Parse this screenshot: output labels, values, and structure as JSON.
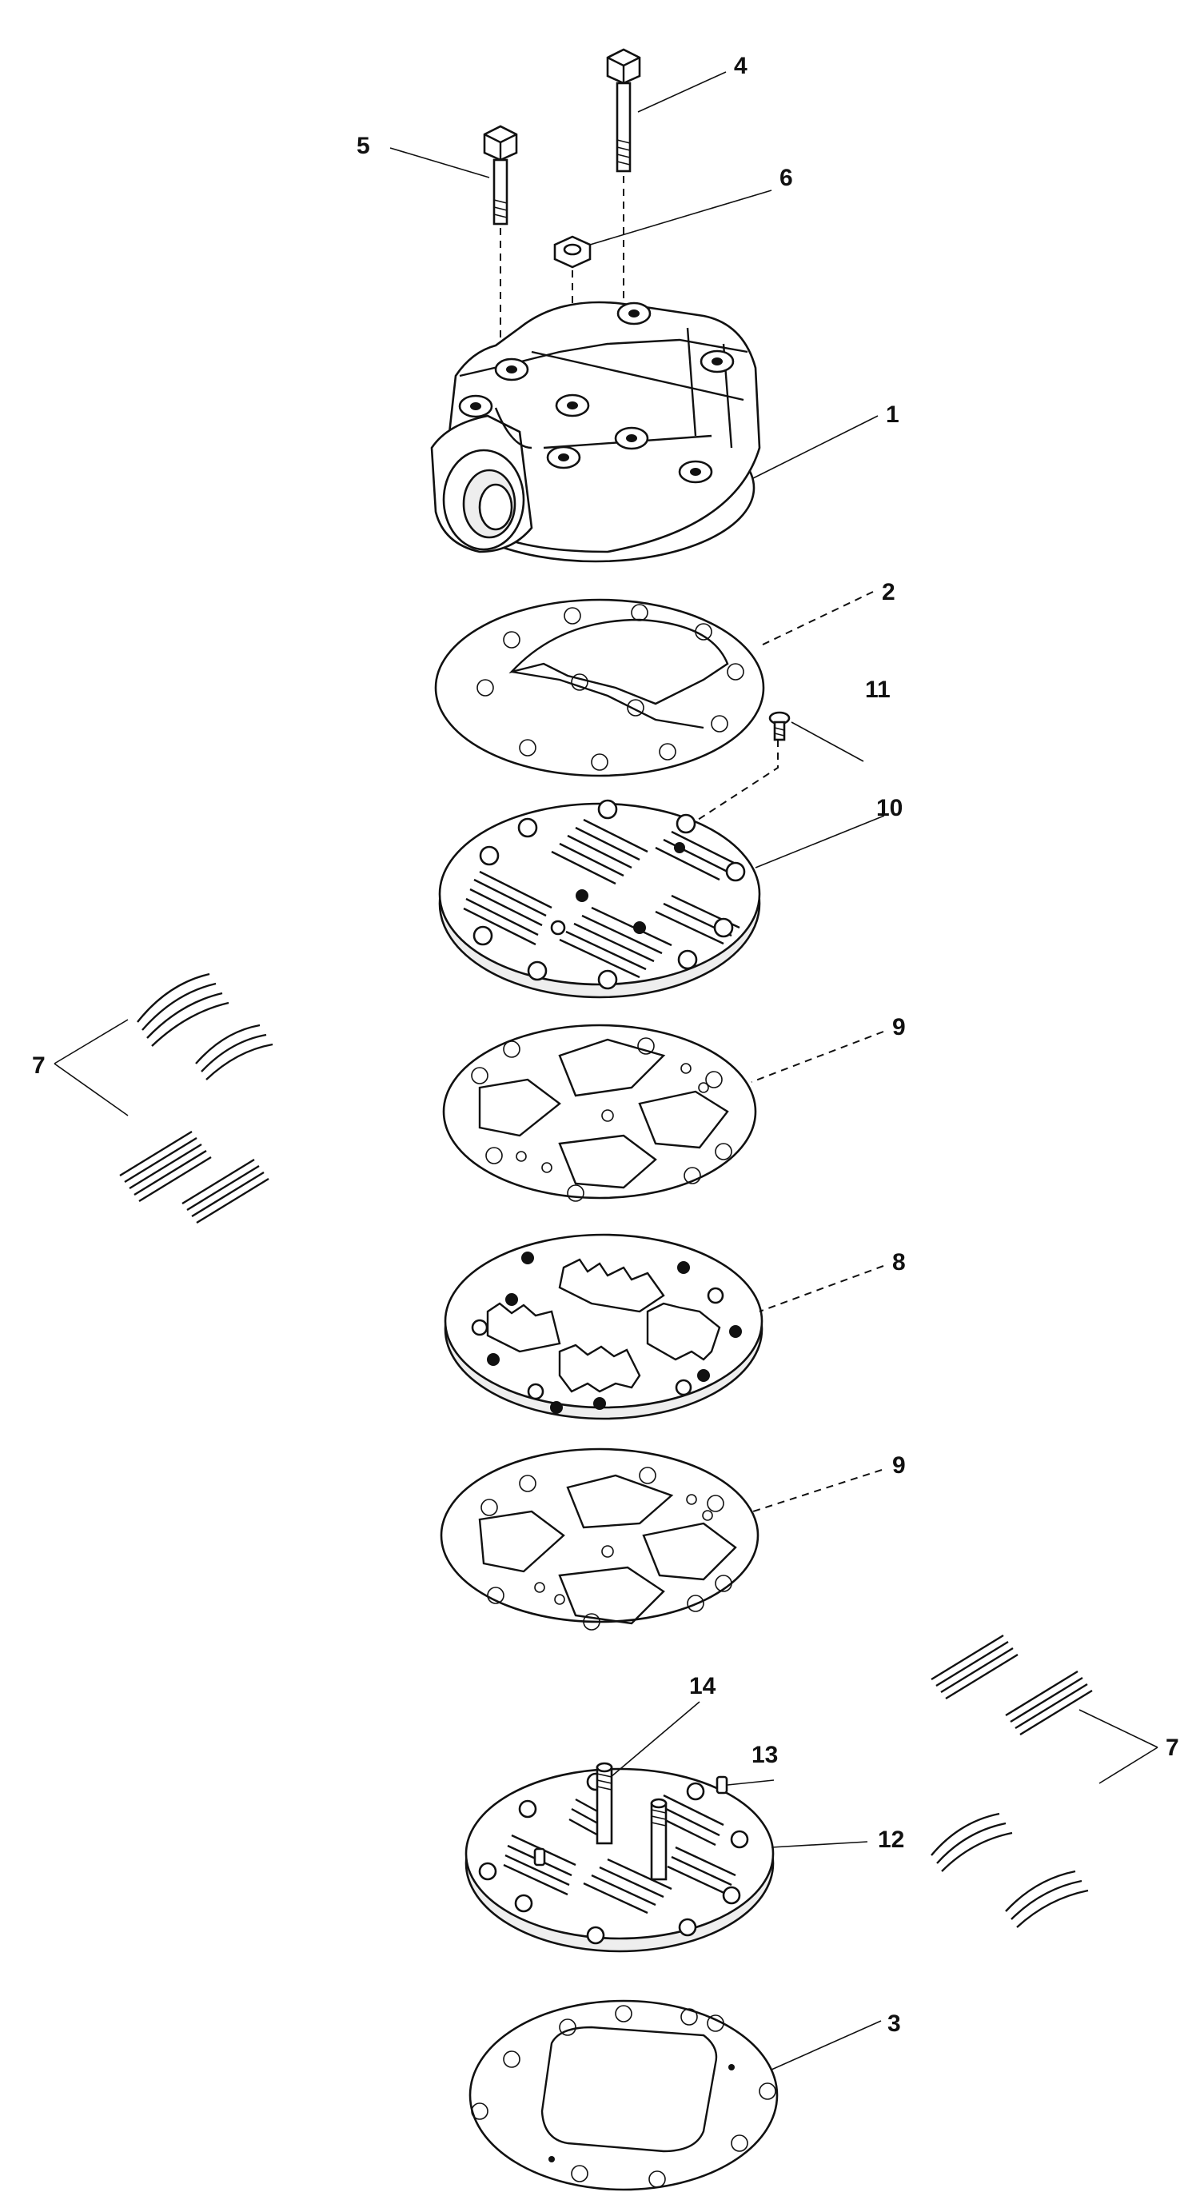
{
  "figure": {
    "callouts": [
      "1",
      "2",
      "3",
      "4",
      "5",
      "6",
      "7",
      "8",
      "9",
      "10",
      "11",
      "12",
      "13",
      "14"
    ]
  },
  "labels": {
    "c1": "1",
    "c2": "2",
    "c3": "3",
    "c4": "4",
    "c5": "5",
    "c6": "6",
    "c7_left": "7",
    "c7_right": "7",
    "c8": "8",
    "c9_upper": "9",
    "c9_lower": "9",
    "c10": "10",
    "c11": "11",
    "c12": "12",
    "c13": "13",
    "c14": "14"
  },
  "colors": {
    "ink": "#111111",
    "paper": "#ffffff"
  }
}
